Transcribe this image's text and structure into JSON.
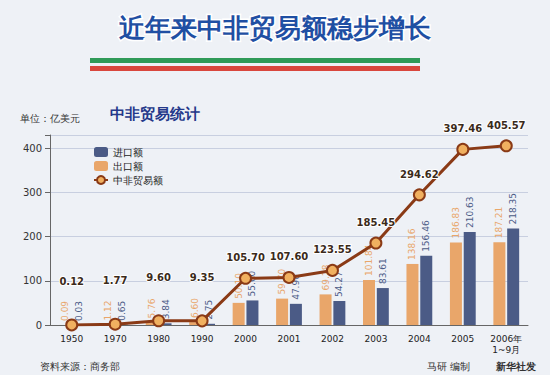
{
  "chart_data": {
    "type": "bar",
    "title": "近年来中非贸易额稳步增长",
    "subtitle": "中非贸易统计",
    "y_label": "单位：亿美元",
    "source": "资料来源：商务部",
    "annotations": [
      "马研 编制",
      "新华社发"
    ],
    "categories": [
      "1950",
      "1970",
      "1980",
      "1990",
      "2000",
      "2001",
      "2002",
      "2003",
      "2004",
      "2005",
      "2006年\n1~9月"
    ],
    "series": [
      {
        "name": "进口额",
        "type": "bar",
        "color": "#4b5b86",
        "values": [
          0.03,
          0.65,
          3.84,
          2.75,
          55.6,
          47.9,
          54.27,
          83.61,
          156.46,
          210.63,
          218.35
        ],
        "value_labels": [
          "0.03",
          "0.65",
          "3.84",
          "2.75",
          "55.60",
          "47.90",
          "54.27",
          "83.61",
          "156.46",
          "210.63",
          "218.35"
        ]
      },
      {
        "name": "出口额",
        "type": "bar",
        "color": "#e9a66a",
        "values": [
          0.09,
          1.12,
          5.76,
          6.6,
          50.1,
          59.7,
          69.28,
          101.84,
          138.16,
          186.83,
          187.21
        ],
        "value_labels": [
          "0.09",
          "1.12",
          "5.76",
          "6.60",
          "50.10",
          "59.70",
          "69.28",
          "101.84",
          "138.16",
          "186.83",
          "187.21"
        ]
      },
      {
        "name": "中非贸易额",
        "type": "line",
        "color": "#8a3a16",
        "marker": "circle",
        "values": [
          0.12,
          1.77,
          9.6,
          9.35,
          105.7,
          107.6,
          123.55,
          185.45,
          294.62,
          397.46,
          405.57
        ],
        "value_labels": [
          "0.12",
          "1.77",
          "9.60",
          "9.35",
          "105.70",
          "107.60",
          "123.55",
          "185.45",
          "294.62",
          "397.46",
          "405.57"
        ]
      }
    ],
    "ylim": [
      0,
      430
    ],
    "yticks": [
      0,
      100,
      200,
      300,
      400
    ],
    "grid": true,
    "legend": "upper left",
    "data_labels": true
  }
}
